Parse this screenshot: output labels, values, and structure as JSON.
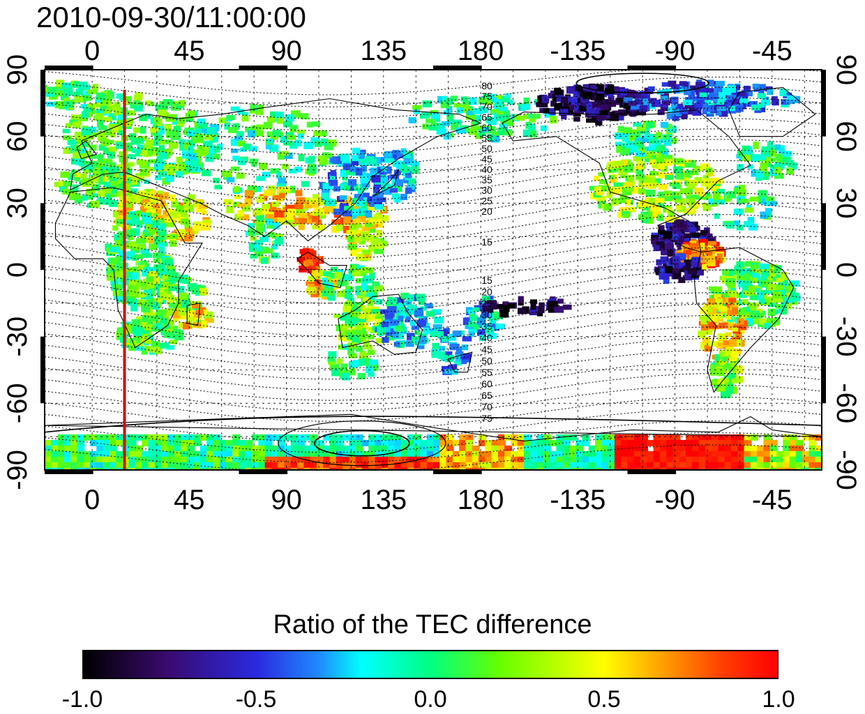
{
  "timestamp": "2010-09-30/11:00:00",
  "map": {
    "projection": "equirectangular",
    "center_longitude": 180,
    "lon_range": [
      -22,
      338
    ],
    "lat_range": [
      -90,
      90
    ],
    "lon_tick_labels": [
      "0",
      "45",
      "90",
      "135",
      "180",
      "-135",
      "-90",
      "-45"
    ],
    "lon_tick_values": [
      0,
      45,
      90,
      135,
      180,
      225,
      270,
      315
    ],
    "lat_tick_labels": [
      "90",
      "60",
      "30",
      "0",
      "-30",
      "-60",
      "-90"
    ],
    "lat_tick_values": [
      90,
      60,
      30,
      0,
      -30,
      -60,
      -90
    ],
    "right_lat_tick_labels": [
      "90",
      "60",
      "30",
      "0",
      "-30",
      "-60",
      "-90"
    ],
    "grid": "dashed, every 15 degrees",
    "terminator_longitude": 15,
    "terminator_color": "#dd0000",
    "contour_labels_north": [
      "80",
      "75",
      "70",
      "65",
      "60",
      "55",
      "50",
      "45",
      "40",
      "35",
      "30",
      "25",
      "20",
      "15"
    ],
    "contour_labels_south": [
      "15",
      "20",
      "25",
      "30",
      "35",
      "40",
      "45",
      "50",
      "55",
      "60",
      "65",
      "70",
      "75"
    ]
  },
  "colorbar": {
    "title": "Ratio of the TEC difference",
    "min": -1.0,
    "max": 1.0,
    "labels": [
      "-1.0",
      "-0.5",
      "0.0",
      "0.5",
      "1.0"
    ],
    "stops": [
      "#000000",
      "#3a0a6e",
      "#2a2ae0",
      "#1f8bff",
      "#00ffff",
      "#00ff7f",
      "#66ff00",
      "#ffff00",
      "#ffb000",
      "#ff4000",
      "#ff0000"
    ]
  }
}
